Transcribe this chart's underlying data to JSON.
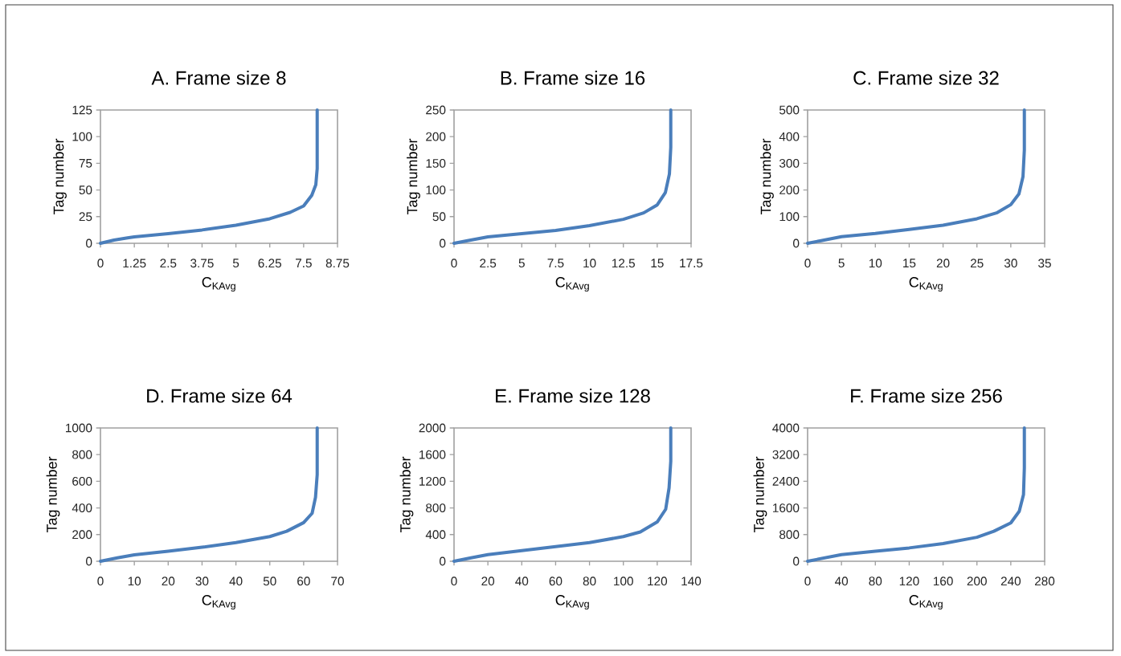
{
  "chart_data": [
    {
      "type": "line",
      "title": "A.  Frame size 8",
      "xlabel": "C$_{KAvg}$",
      "ylabel": "Tag number",
      "color": "#4a7ebb",
      "x": [
        0,
        0.5,
        1,
        1.25,
        2.5,
        3.75,
        5,
        6.25,
        7,
        7.5,
        7.8,
        7.95,
        8,
        8
      ],
      "values": [
        0,
        3,
        5,
        6,
        9,
        12.5,
        17,
        23,
        29,
        35,
        45,
        55,
        70,
        125
      ],
      "xlim": [
        0,
        8.75
      ],
      "ylim": [
        0,
        125
      ],
      "xticks": [
        0,
        1.25,
        2.5,
        3.75,
        5,
        6.25,
        7.5,
        8.75
      ],
      "yticks": [
        0,
        25,
        50,
        75,
        100,
        125
      ]
    },
    {
      "type": "line",
      "title": "B.  Frame size 16",
      "xlabel": "C$_{KAvg}$",
      "ylabel": "Tag number",
      "color": "#4a7ebb",
      "x": [
        0,
        1,
        2.5,
        5,
        7.5,
        10,
        12.5,
        14,
        15,
        15.6,
        15.9,
        16,
        16
      ],
      "values": [
        0,
        5,
        12,
        18,
        24,
        33,
        45,
        57,
        72,
        95,
        130,
        180,
        250
      ],
      "xlim": [
        0,
        17.5
      ],
      "ylim": [
        0,
        250
      ],
      "xticks": [
        0,
        2.5,
        5,
        7.5,
        10,
        12.5,
        15,
        17.5
      ],
      "yticks": [
        0,
        50,
        100,
        150,
        200,
        250
      ]
    },
    {
      "type": "line",
      "title": "C.  Frame size 32",
      "xlabel": "C$_{KAvg}$",
      "ylabel": "Tag number",
      "color": "#4a7ebb",
      "x": [
        0,
        2,
        5,
        10,
        15,
        20,
        25,
        28,
        30,
        31.2,
        31.8,
        32,
        32
      ],
      "values": [
        0,
        10,
        25,
        37,
        52,
        68,
        92,
        115,
        145,
        185,
        250,
        350,
        500
      ],
      "xlim": [
        0,
        35
      ],
      "ylim": [
        0,
        500
      ],
      "xticks": [
        0,
        5,
        10,
        15,
        20,
        25,
        30,
        35
      ],
      "yticks": [
        0,
        100,
        200,
        300,
        400,
        500
      ]
    },
    {
      "type": "line",
      "title": "D.  Frame size 64",
      "xlabel": "C$_{KAvg}$",
      "ylabel": "Tag number",
      "color": "#4a7ebb",
      "x": [
        0,
        5,
        10,
        20,
        30,
        40,
        50,
        55,
        60,
        62.5,
        63.5,
        64,
        64
      ],
      "values": [
        0,
        25,
        48,
        75,
        105,
        140,
        185,
        225,
        290,
        360,
        480,
        650,
        1000
      ],
      "xlim": [
        0,
        70
      ],
      "ylim": [
        0,
        1000
      ],
      "xticks": [
        0,
        10,
        20,
        30,
        40,
        50,
        60,
        70
      ],
      "yticks": [
        0,
        200,
        400,
        600,
        800,
        1000
      ]
    },
    {
      "type": "line",
      "title": "E.  Frame size 128",
      "xlabel": "C$_{KAvg}$",
      "ylabel": "Tag number",
      "color": "#4a7ebb",
      "x": [
        0,
        10,
        20,
        40,
        60,
        80,
        100,
        110,
        120,
        125,
        127,
        128,
        128
      ],
      "values": [
        0,
        50,
        100,
        160,
        220,
        280,
        370,
        440,
        590,
        780,
        1100,
        1500,
        2000
      ],
      "xlim": [
        0,
        140
      ],
      "ylim": [
        0,
        2000
      ],
      "xticks": [
        0,
        20,
        40,
        60,
        80,
        100,
        120,
        140
      ],
      "yticks": [
        0,
        400,
        800,
        1200,
        1600,
        2000
      ]
    },
    {
      "type": "line",
      "title": "F.  Frame size 256",
      "xlabel": "C$_{KAvg}$",
      "ylabel": "Tag number",
      "color": "#4a7ebb",
      "x": [
        0,
        20,
        40,
        80,
        120,
        160,
        200,
        220,
        240,
        250,
        255,
        256,
        256
      ],
      "values": [
        0,
        100,
        200,
        300,
        400,
        530,
        720,
        900,
        1150,
        1500,
        2000,
        2800,
        4000
      ],
      "xlim": [
        0,
        280
      ],
      "ylim": [
        0,
        4000
      ],
      "xticks": [
        0,
        40,
        80,
        120,
        160,
        200,
        240,
        280
      ],
      "yticks": [
        0,
        800,
        1600,
        2400,
        3200,
        4000
      ]
    }
  ]
}
